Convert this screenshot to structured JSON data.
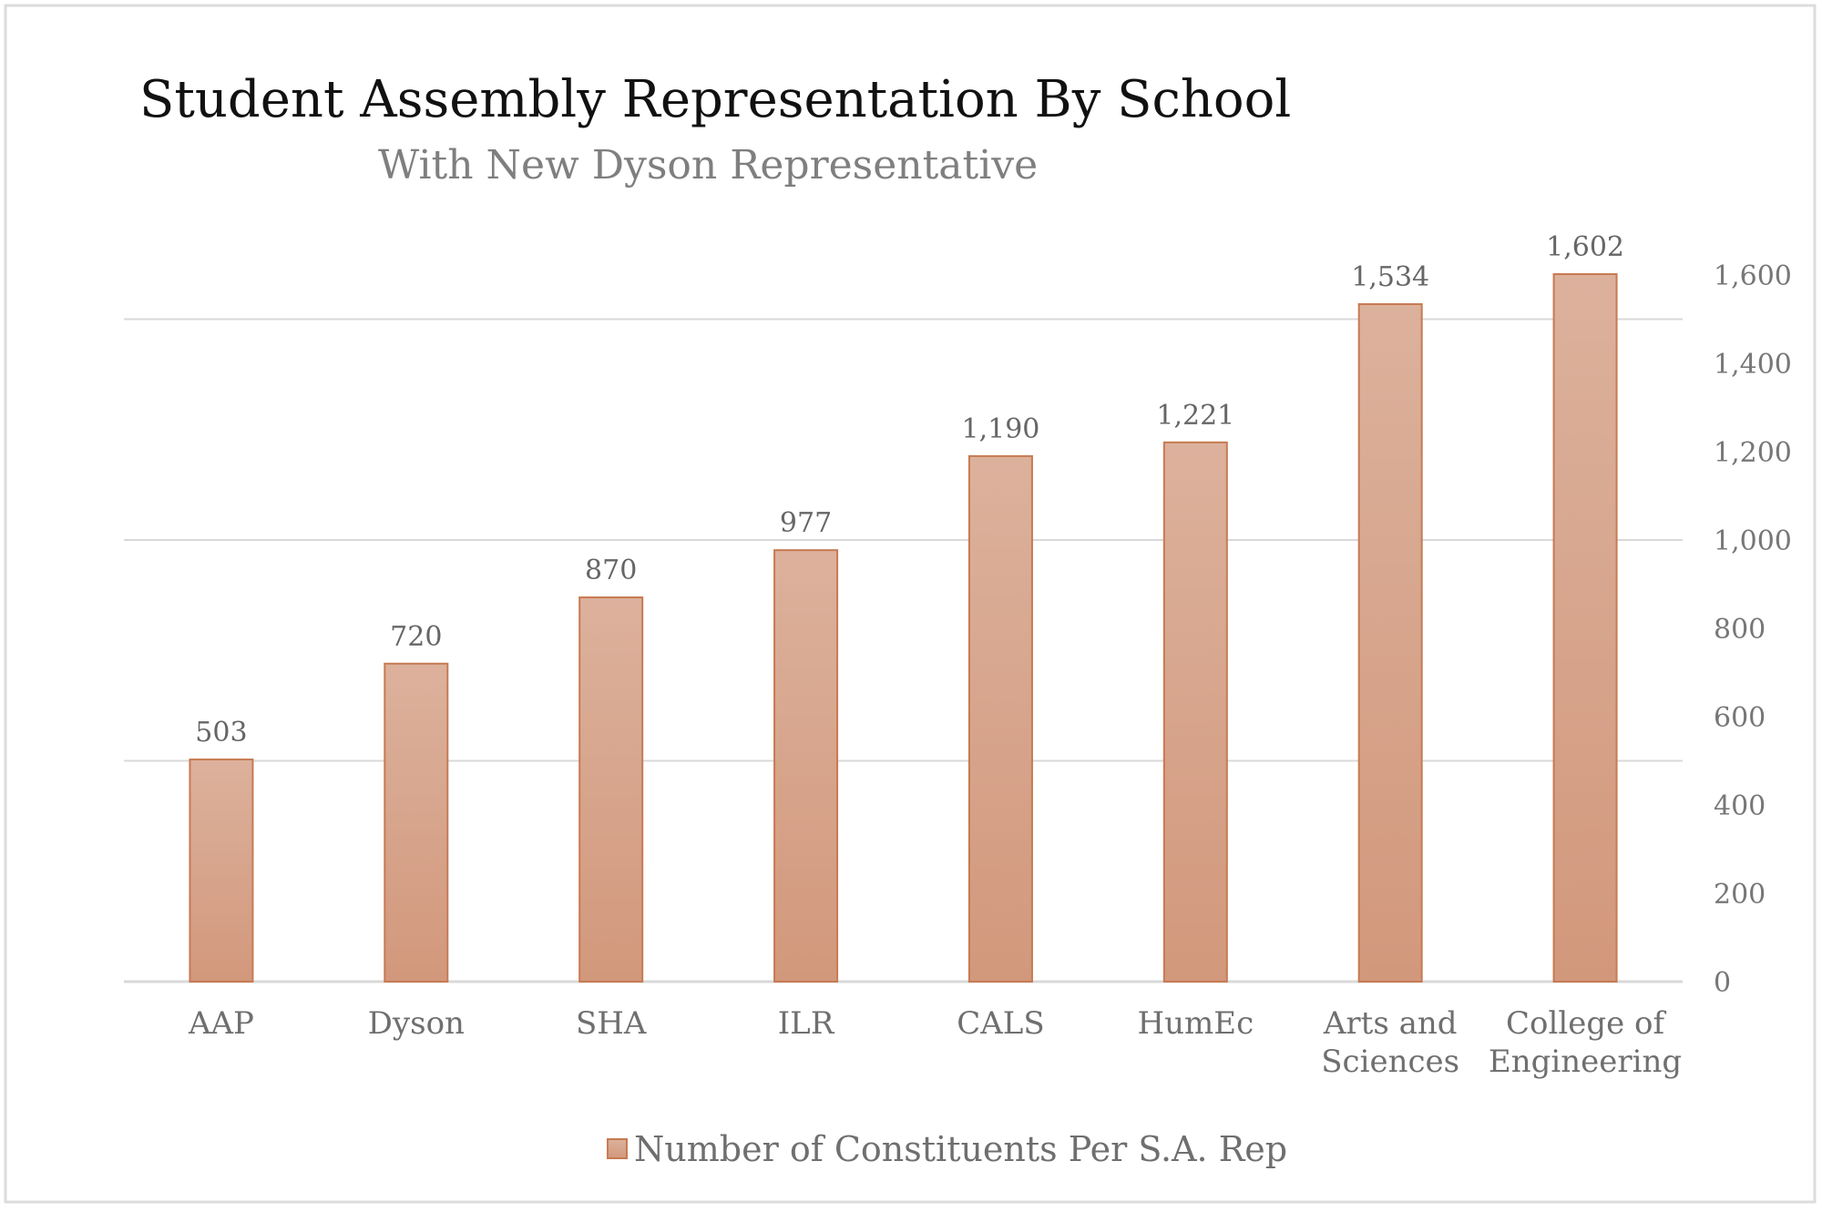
{
  "chart_data": {
    "type": "bar",
    "title": "Student Assembly Representation By School",
    "subtitle": "With New Dyson Representative",
    "categories": [
      [
        "AAP"
      ],
      [
        "Dyson"
      ],
      [
        "SHA"
      ],
      [
        "ILR"
      ],
      [
        "CALS"
      ],
      [
        "HumEc"
      ],
      [
        "Arts and",
        "Sciences"
      ],
      [
        "College of",
        "Engineering"
      ]
    ],
    "series": [
      {
        "name": "Number of Constituents Per S.A. Rep",
        "values": [
          503,
          720,
          870,
          977,
          1190,
          1221,
          1534,
          1602
        ]
      }
    ],
    "data_labels": [
      "503",
      "720",
      "870",
      "977",
      "1,190",
      "1,221",
      "1,534",
      "1,602"
    ],
    "y_axis": {
      "position": "right",
      "ylim": [
        0,
        1600
      ],
      "tick_labels": [
        "0",
        "200",
        "400",
        "600",
        "800",
        "1,000",
        "1,200",
        "1,400",
        "1,600"
      ],
      "tick_values": [
        0,
        200,
        400,
        600,
        800,
        1000,
        1200,
        1400,
        1600
      ]
    },
    "gridlines": [
      500,
      1000,
      1500
    ],
    "grid": true,
    "legend_placement": "bottom",
    "colors": {
      "bar_top": "#dcb19c",
      "bar_bottom": "#d2987c",
      "bar_border": "#c77a52",
      "grid": "#d9d9d9"
    }
  }
}
